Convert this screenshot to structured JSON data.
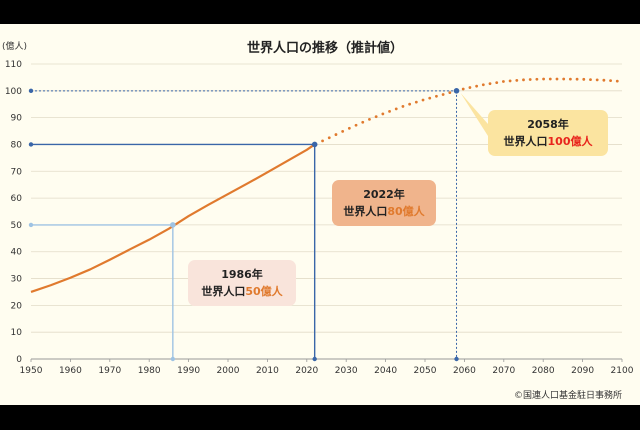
{
  "chart_data": {
    "type": "line",
    "title": "世界人口の推移（推計値）",
    "unit_label": "(億人)",
    "credit": "©国連人口基金駐日事務所",
    "ylim": [
      0,
      110
    ],
    "xlim": [
      1950,
      2100
    ],
    "y_ticks": [
      "0",
      "10",
      "20",
      "30",
      "40",
      "50",
      "60",
      "70",
      "80",
      "90",
      "100",
      "110"
    ],
    "x_ticks": [
      "1950",
      "1960",
      "1970",
      "1980",
      "1990",
      "2000",
      "2010",
      "2020",
      "2030",
      "2040",
      "2050",
      "2060",
      "2070",
      "2080",
      "2090",
      "2100"
    ],
    "grid": true,
    "series": [
      {
        "style": "solid",
        "color": "#e07a2e",
        "x": [
          1950,
          1955,
          1960,
          1965,
          1970,
          1975,
          1980,
          1985,
          1990,
          1995,
          2000,
          2005,
          2010,
          2015,
          2020,
          2022
        ],
        "y": [
          25,
          27.5,
          30.3,
          33.4,
          37,
          40.8,
          44.5,
          48.6,
          53.3,
          57.5,
          61.5,
          65.5,
          69.6,
          73.8,
          78,
          80
        ]
      },
      {
        "style": "dotted",
        "color": "#e07a2e",
        "x": [
          2022,
          2025,
          2030,
          2035,
          2040,
          2045,
          2050,
          2055,
          2058,
          2060,
          2065,
          2070,
          2075,
          2080,
          2085,
          2090,
          2095,
          2100
        ],
        "y": [
          80,
          82,
          85.5,
          88.8,
          91.8,
          94.5,
          96.8,
          98.8,
          100,
          100.8,
          102.3,
          103.5,
          104.1,
          104.4,
          104.4,
          104.3,
          104,
          103.5
        ]
      }
    ],
    "annotations": [
      {
        "year_label": "1986年",
        "pop_prefix": "世界人口",
        "pop_value": "50億人",
        "x": 1986,
        "y": 50,
        "value_color": "#e07a2e",
        "guide_color": "#9fc3e3",
        "box_color": "#f9e4db"
      },
      {
        "year_label": "2022年",
        "pop_prefix": "世界人口",
        "pop_value": "80億人",
        "x": 2022,
        "y": 80,
        "value_color": "#e07a2e",
        "guide_color": "#3a66a8",
        "box_color": "#f0b48c"
      },
      {
        "year_label": "2058年",
        "pop_prefix": "世界人口",
        "pop_value": "100億人",
        "x": 2058,
        "y": 100,
        "value_color": "#e8241c",
        "guide_color": "#3a66a8",
        "box_color": "#fbe4a0"
      }
    ]
  }
}
